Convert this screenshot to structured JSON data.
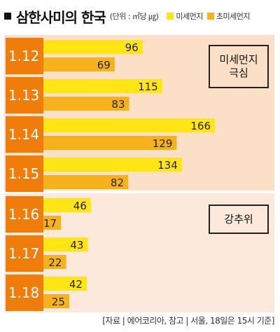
{
  "header": {
    "title": "삼한사미의 한국",
    "unit": "(단위 : ㎥당 ㎍)",
    "legend": [
      {
        "label": "미세먼지",
        "color": "#FFE514"
      },
      {
        "label": "초미세먼지",
        "color": "#F6B21C"
      }
    ]
  },
  "annotations": {
    "dust_line1": "미세먼지",
    "dust_line2": "극심",
    "cold": "강추위"
  },
  "source": "[자료 | 에어코리아, 참고 | 서울, 18일은 15시 기준]",
  "colors": {
    "date_box": "#F07D0A",
    "pm10": "#FFE514",
    "pm25": "#F6B21C",
    "bg_dust": "#FBDFC6",
    "bg_cold": "#FCE9DB"
  },
  "chart_data": {
    "type": "bar",
    "orientation": "horizontal",
    "categories": [
      "1.12",
      "1.13",
      "1.14",
      "1.15",
      "1.16",
      "1.17",
      "1.18"
    ],
    "series": [
      {
        "name": "미세먼지",
        "values": [
          96,
          115,
          166,
          134,
          46,
          43,
          42
        ]
      },
      {
        "name": "초미세먼지",
        "values": [
          69,
          83,
          129,
          82,
          17,
          22,
          25
        ]
      }
    ],
    "groups": [
      {
        "label": "미세먼지 극심",
        "categories": [
          "1.12",
          "1.13",
          "1.14",
          "1.15"
        ]
      },
      {
        "label": "강추위",
        "categories": [
          "1.16",
          "1.17",
          "1.18"
        ]
      }
    ],
    "data_labels": true
  }
}
